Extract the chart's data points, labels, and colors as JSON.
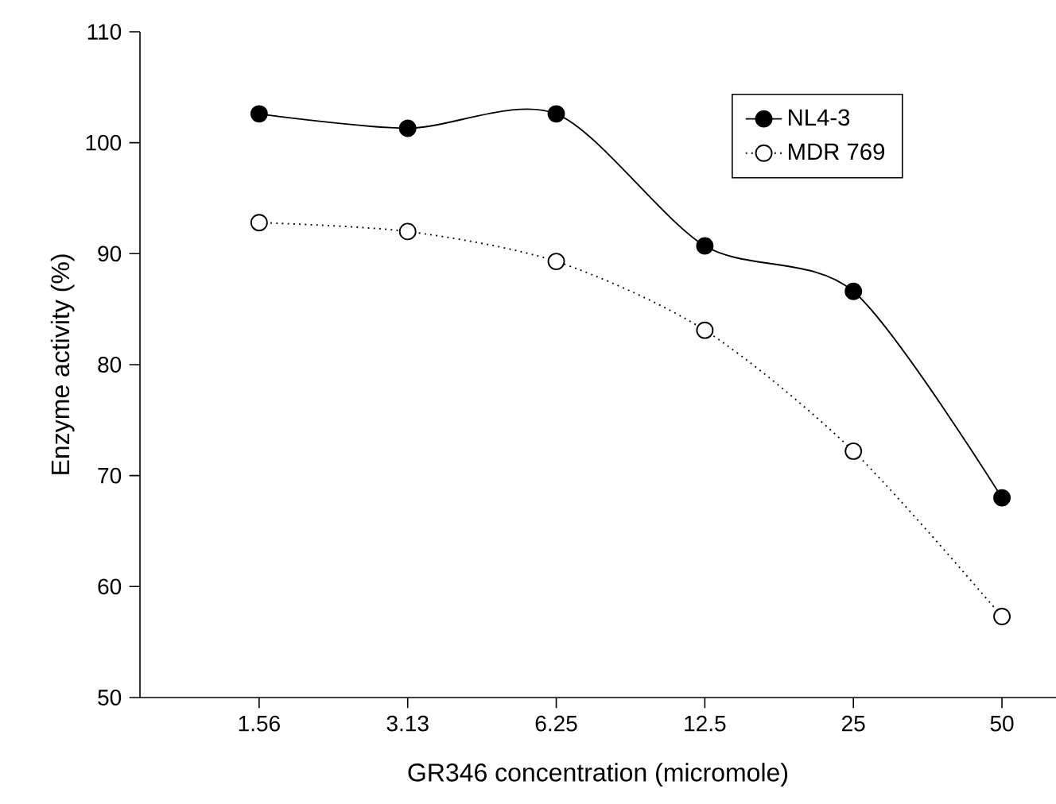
{
  "chart_data": {
    "type": "line",
    "xlabel": "GR346 concentration (micromole)",
    "ylabel": "Enzyme activity (%)",
    "categories": [
      "1.56",
      "3.13",
      "6.25",
      "12.5",
      "25",
      "50"
    ],
    "series": [
      {
        "name": "NL4-3",
        "color": "#000000",
        "line_style": "solid",
        "values": [
          102.6,
          101.3,
          102.6,
          90.7,
          86.6,
          68.0
        ]
      },
      {
        "name": "MDR 769",
        "color": "#000000",
        "line_style": "dotted",
        "values": [
          92.8,
          92.0,
          89.3,
          83.1,
          72.2,
          57.3
        ]
      }
    ],
    "ylim": [
      50,
      110
    ],
    "yticks": [
      50,
      60,
      70,
      80,
      90,
      100,
      110
    ],
    "marker": "circle",
    "legend": "top right",
    "grid": false
  }
}
